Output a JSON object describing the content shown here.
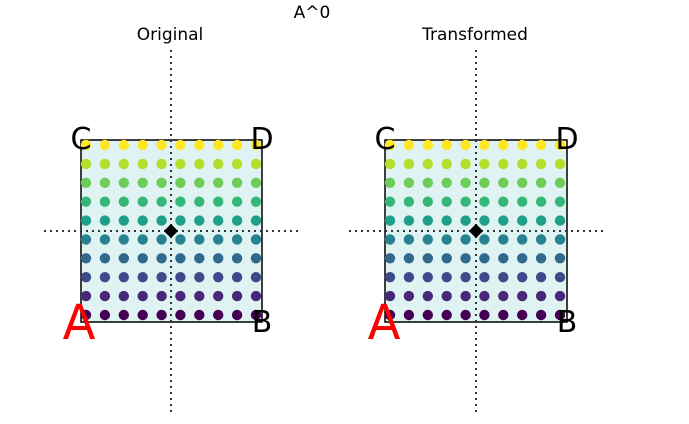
{
  "figure": {
    "title": "A^0"
  },
  "panels": [
    {
      "id": "original",
      "title": "Original",
      "corners": {
        "A": "A",
        "B": "B",
        "C": "C",
        "D": "D"
      }
    },
    {
      "id": "transformed",
      "title": "Transformed",
      "corners": {
        "A": "A",
        "B": "B",
        "C": "C",
        "D": "D"
      }
    }
  ],
  "grid": {
    "cols": 10,
    "rows": 10,
    "colormap": "viridis"
  },
  "colors": {
    "square_fill": "#e0f3f3",
    "label_a": "#ff0000",
    "center_marker": "#000000"
  }
}
